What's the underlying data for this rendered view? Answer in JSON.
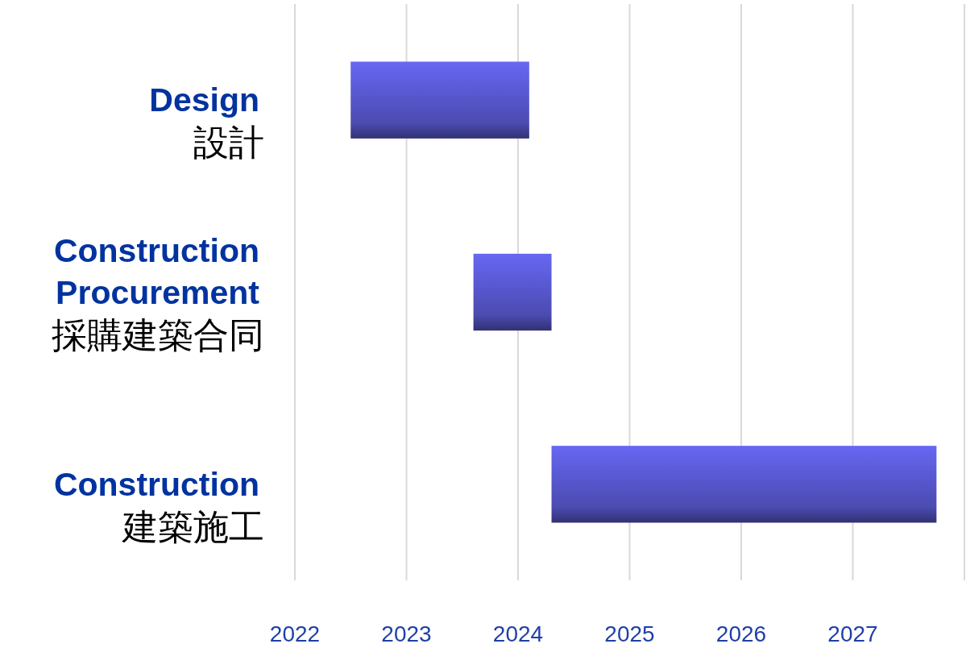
{
  "chart_data": {
    "type": "bar",
    "orientation": "horizontal",
    "categories": [
      "Design\n設計",
      "Construction\nProcurement\n採購建築合同",
      "Construction\n建築施工"
    ],
    "base": [
      2022.5,
      2023.6,
      2024.3
    ],
    "values": [
      1.6,
      0.7,
      3.45
    ],
    "color": "#4b4bb0",
    "xlim": [
      2022,
      2028
    ],
    "xticks": [
      2022,
      2023,
      2024,
      2025,
      2026,
      2027,
      {
        "value": 2028,
        "label": null
      }
    ],
    "grid": "x"
  }
}
